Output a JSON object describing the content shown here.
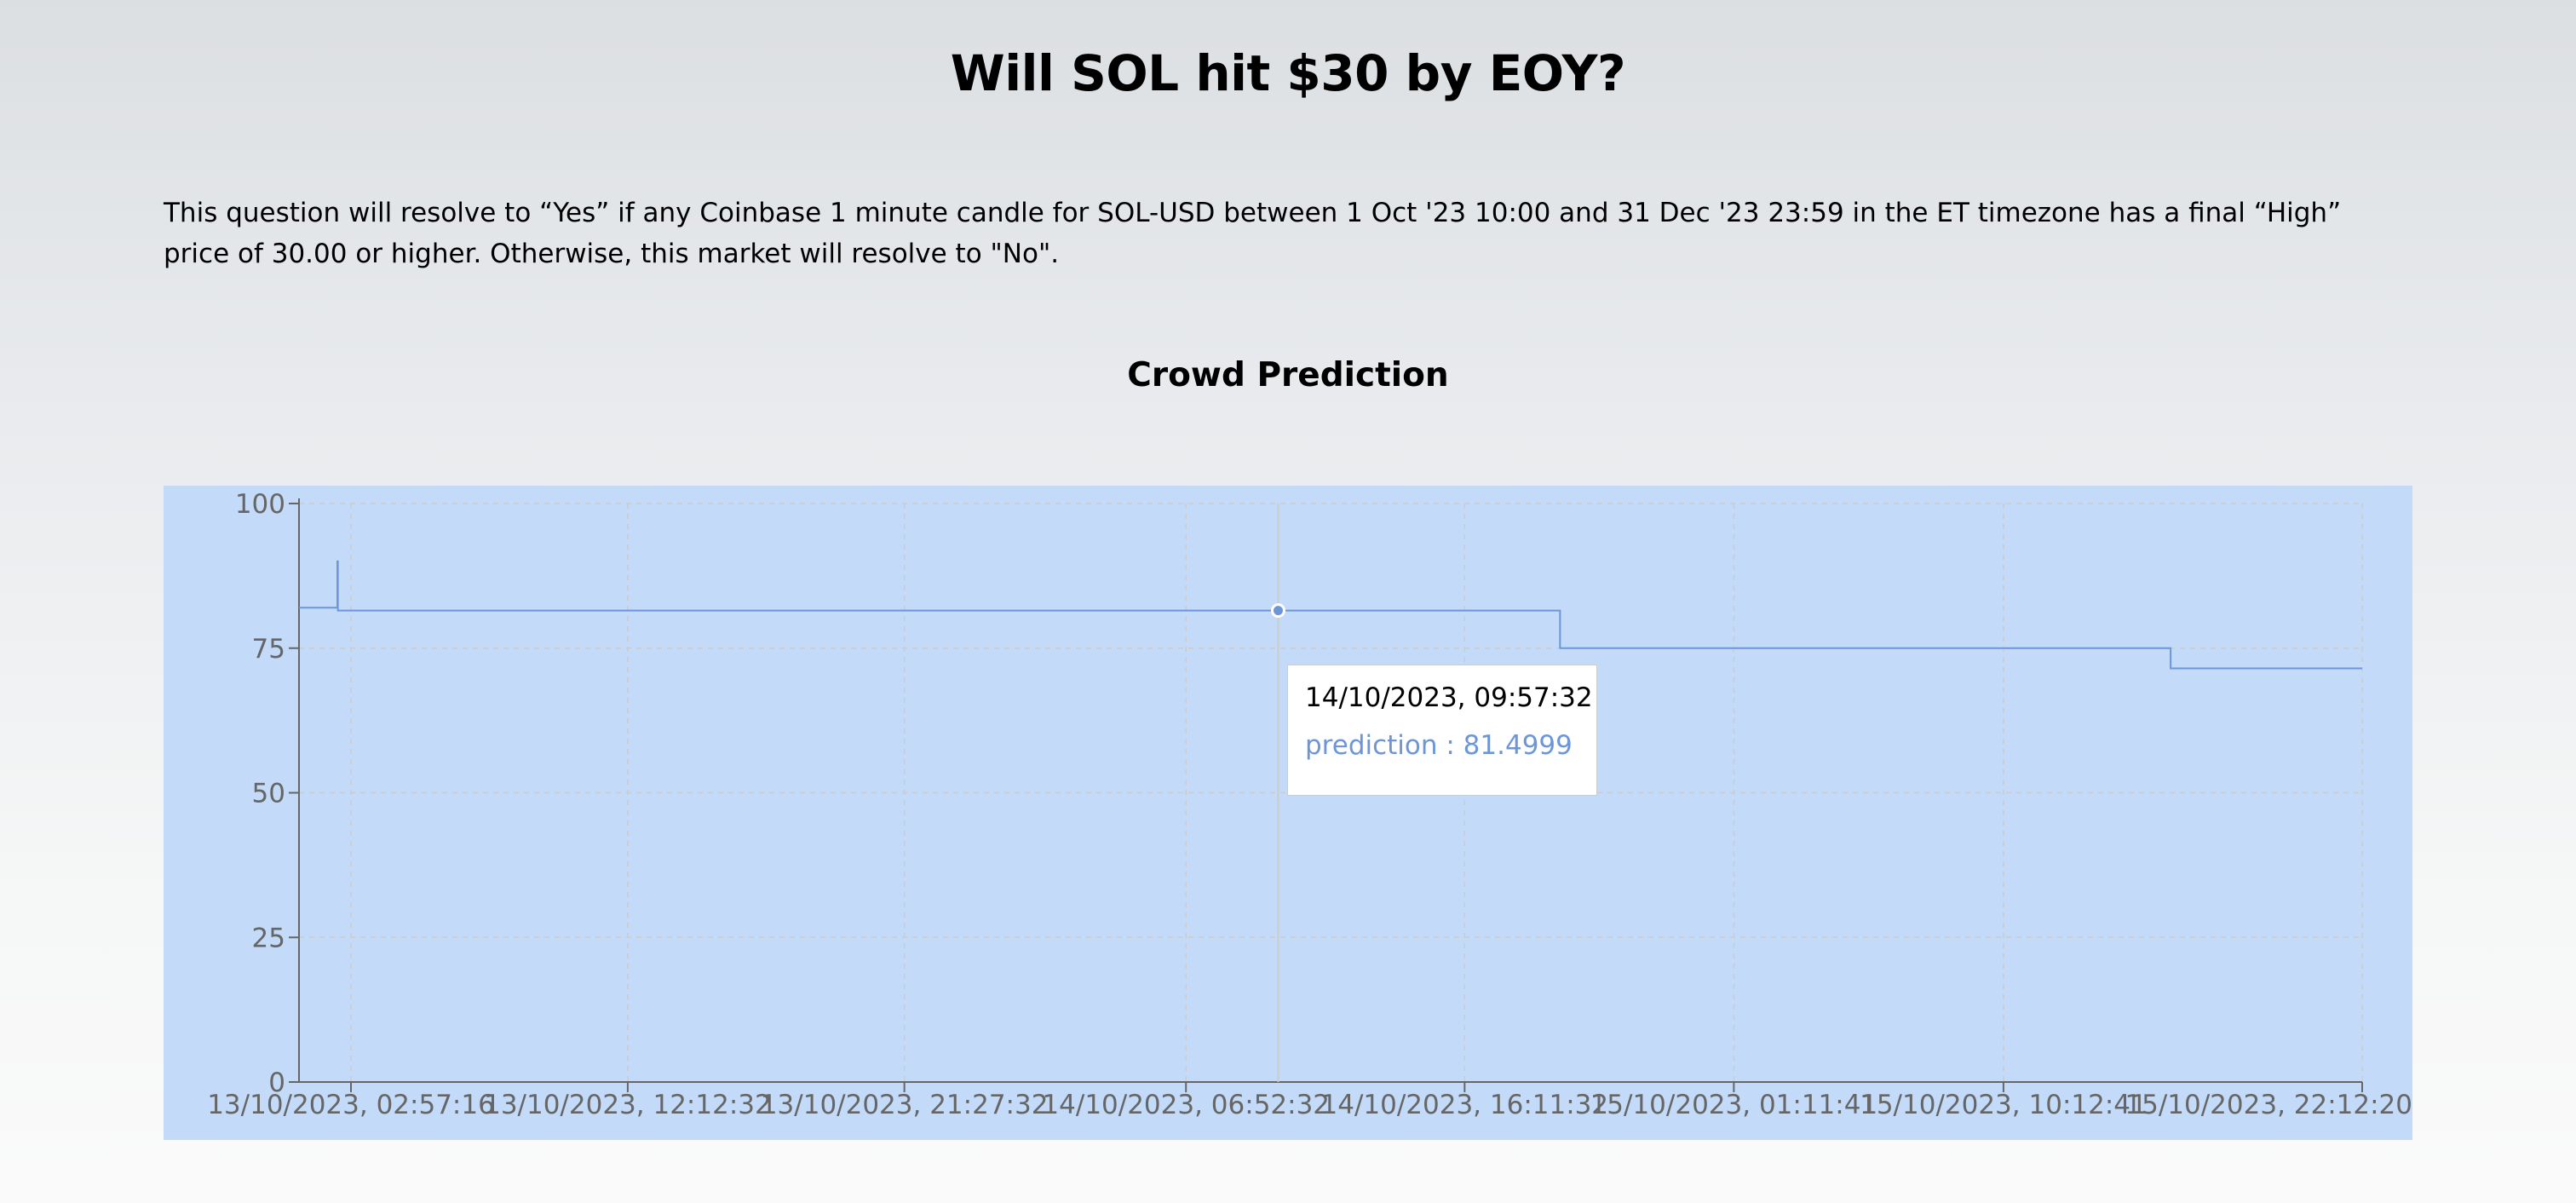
{
  "page": {
    "title": "Will SOL hit $30 by EOY?",
    "description": "This question will resolve to “Yes” if any Coinbase 1 minute candle for SOL-USD between 1 Oct '23 10:00 and 31 Dec '23 23:59 in the ET timezone has a final “High” price of 30.00 or higher. Otherwise, this market will resolve to \"No\".",
    "section_title": "Crowd Prediction"
  },
  "colors": {
    "panel_background": "#c3daf8",
    "line": "#6c96d8",
    "axis": "#666666",
    "grid": "#cccccc"
  },
  "tooltip": {
    "time": "14/10/2023, 09:57:32",
    "series_name": "prediction",
    "separator": " : ",
    "value": "81.4999",
    "text": "prediction : 81.4999"
  },
  "chart_data": {
    "type": "line",
    "step": true,
    "grid": true,
    "ylim": [
      0,
      100
    ],
    "yticks": [
      0,
      25,
      50,
      75,
      100
    ],
    "xlim": [
      "2023-10-13T01:13:00",
      "2023-10-15T22:12:20"
    ],
    "xticks": [
      {
        "t": "2023-10-13T02:57:16",
        "label": "13/10/2023, 02:57:16"
      },
      {
        "t": "2023-10-13T12:12:32",
        "label": "13/10/2023, 12:12:32"
      },
      {
        "t": "2023-10-13T21:27:32",
        "label": "13/10/2023, 21:27:32"
      },
      {
        "t": "2023-10-14T06:52:32",
        "label": "14/10/2023, 06:52:32"
      },
      {
        "t": "2023-10-14T16:11:32",
        "label": "14/10/2023, 16:11:32"
      },
      {
        "t": "2023-10-15T01:11:41",
        "label": "15/10/2023, 01:11:41"
      },
      {
        "t": "2023-10-15T10:12:41",
        "label": "15/10/2023, 10:12:41"
      },
      {
        "t": "2023-10-15T22:12:20",
        "label": "15/10/2023, 22:12:20"
      }
    ],
    "series": [
      {
        "name": "prediction",
        "points": [
          {
            "t": "2023-10-13T01:13:00",
            "y": 82
          },
          {
            "t": "2023-10-13T02:29:00",
            "y": 82
          },
          {
            "t": "2023-10-13T02:30:00",
            "y": 90
          },
          {
            "t": "2023-10-13T02:31:00",
            "y": 81.5
          },
          {
            "t": "2023-10-14T09:57:32",
            "y": 81.4999
          },
          {
            "t": "2023-10-14T19:23:00",
            "y": 75
          },
          {
            "t": "2023-10-15T15:48:00",
            "y": 71.5
          },
          {
            "t": "2023-10-15T22:12:20",
            "y": 71.5
          }
        ]
      }
    ],
    "highlight": {
      "t": "2023-10-14T09:57:32",
      "y": 81.4999
    }
  }
}
